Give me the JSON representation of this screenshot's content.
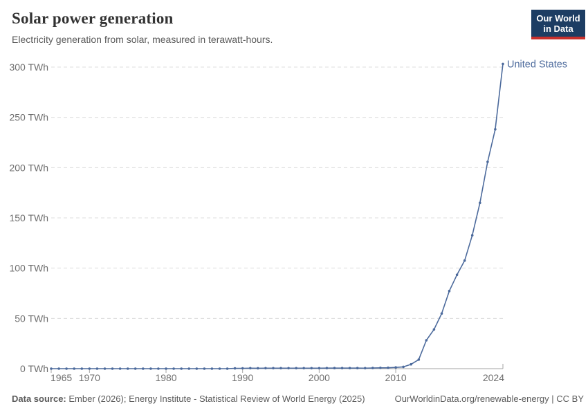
{
  "header": {
    "title": "Solar power generation",
    "subtitle": "Electricity generation from solar, measured in terawatt-hours."
  },
  "logo": {
    "line1": "Our World",
    "line2": "in Data",
    "bg_color": "#1d3d63",
    "stripe_color": "#c9302c",
    "text_color": "#ffffff"
  },
  "chart_data": {
    "type": "line",
    "title": "Solar power generation",
    "ylabel": "terawatt-hours",
    "unit": "TWh",
    "grid": "horizontal dashed",
    "grid_color": "#dcdcdc",
    "axis_color": "#a3a3a3",
    "tick_label_color": "#6e6e6e",
    "legend_position": "end-of-line label",
    "xlim": [
      1965,
      2024
    ],
    "ylim": [
      0,
      300
    ],
    "yticks": [
      {
        "value": 0,
        "label": "0 TWh"
      },
      {
        "value": 50,
        "label": "50 TWh"
      },
      {
        "value": 100,
        "label": "100 TWh"
      },
      {
        "value": 150,
        "label": "150 TWh"
      },
      {
        "value": 200,
        "label": "200 TWh"
      },
      {
        "value": 250,
        "label": "250 TWh"
      },
      {
        "value": 300,
        "label": "300 TWh"
      }
    ],
    "xticks": [
      {
        "value": 1965,
        "label": "1965"
      },
      {
        "value": 1970,
        "label": "1970"
      },
      {
        "value": 1980,
        "label": "1980"
      },
      {
        "value": 1990,
        "label": "1990"
      },
      {
        "value": 2000,
        "label": "2000"
      },
      {
        "value": 2010,
        "label": "2010"
      },
      {
        "value": 2024,
        "label": "2024"
      }
    ],
    "series": [
      {
        "name": "United States",
        "color": "#4c6a9c",
        "x_start": 1965,
        "values": [
          0,
          0,
          0,
          0,
          0,
          0,
          0,
          0,
          0,
          0,
          0,
          0,
          0,
          0,
          0,
          0,
          0,
          0,
          0,
          0.01,
          0.01,
          0.01,
          0.01,
          0.01,
          0.27,
          0.37,
          0.47,
          0.43,
          0.46,
          0.45,
          0.45,
          0.46,
          0.47,
          0.49,
          0.49,
          0.49,
          0.54,
          0.56,
          0.53,
          0.58,
          0.55,
          0.51,
          0.61,
          0.86,
          0.89,
          1.21,
          1.82,
          4.33,
          9.04,
          28.24,
          39.03,
          54.87,
          77.28,
          93.36,
          107.53,
          132.63,
          164.92,
          205.74,
          238.12,
          303.17
        ]
      }
    ]
  },
  "footer": {
    "source_label": "Data source:",
    "source_text": " Ember (2026); Energy Institute - Statistical Review of World Energy (2025)",
    "link": "OurWorldinData.org/renewable-energy",
    "license": " | CC BY"
  }
}
